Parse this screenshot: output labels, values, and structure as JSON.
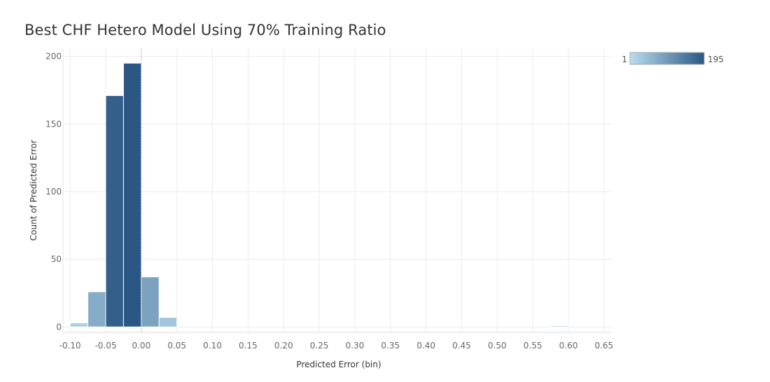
{
  "chart_data": {
    "type": "bar",
    "title": "Best CHF Hetero Model Using 70% Training Ratio",
    "xlabel": "Predicted Error (bin)",
    "ylabel": "Count of Predicted Error",
    "x_ticks": [
      "-0.10",
      "-0.05",
      "0.00",
      "0.05",
      "0.10",
      "0.15",
      "0.20",
      "0.25",
      "0.30",
      "0.35",
      "0.40",
      "0.45",
      "0.50",
      "0.55",
      "0.60",
      "0.65"
    ],
    "y_ticks": [
      "0",
      "50",
      "100",
      "150",
      "200"
    ],
    "xlim": [
      -0.11,
      0.66
    ],
    "ylim": [
      -4,
      206
    ],
    "bin_width": 0.025,
    "bins": [
      {
        "x": -0.075,
        "value": 3
      },
      {
        "x": -0.05,
        "value": 26
      },
      {
        "x": -0.025,
        "value": 171
      },
      {
        "x": 0.0,
        "value": 195
      },
      {
        "x": 0.025,
        "value": 37
      },
      {
        "x": 0.05,
        "value": 7
      },
      {
        "x": 0.6,
        "value": 1
      }
    ],
    "zero_reference_line": true,
    "grid": true,
    "color_legend": {
      "min_label": "1",
      "max_label": "195",
      "min_color": "#b9dcef",
      "max_color": "#2a5783",
      "placement": "top-right"
    }
  }
}
